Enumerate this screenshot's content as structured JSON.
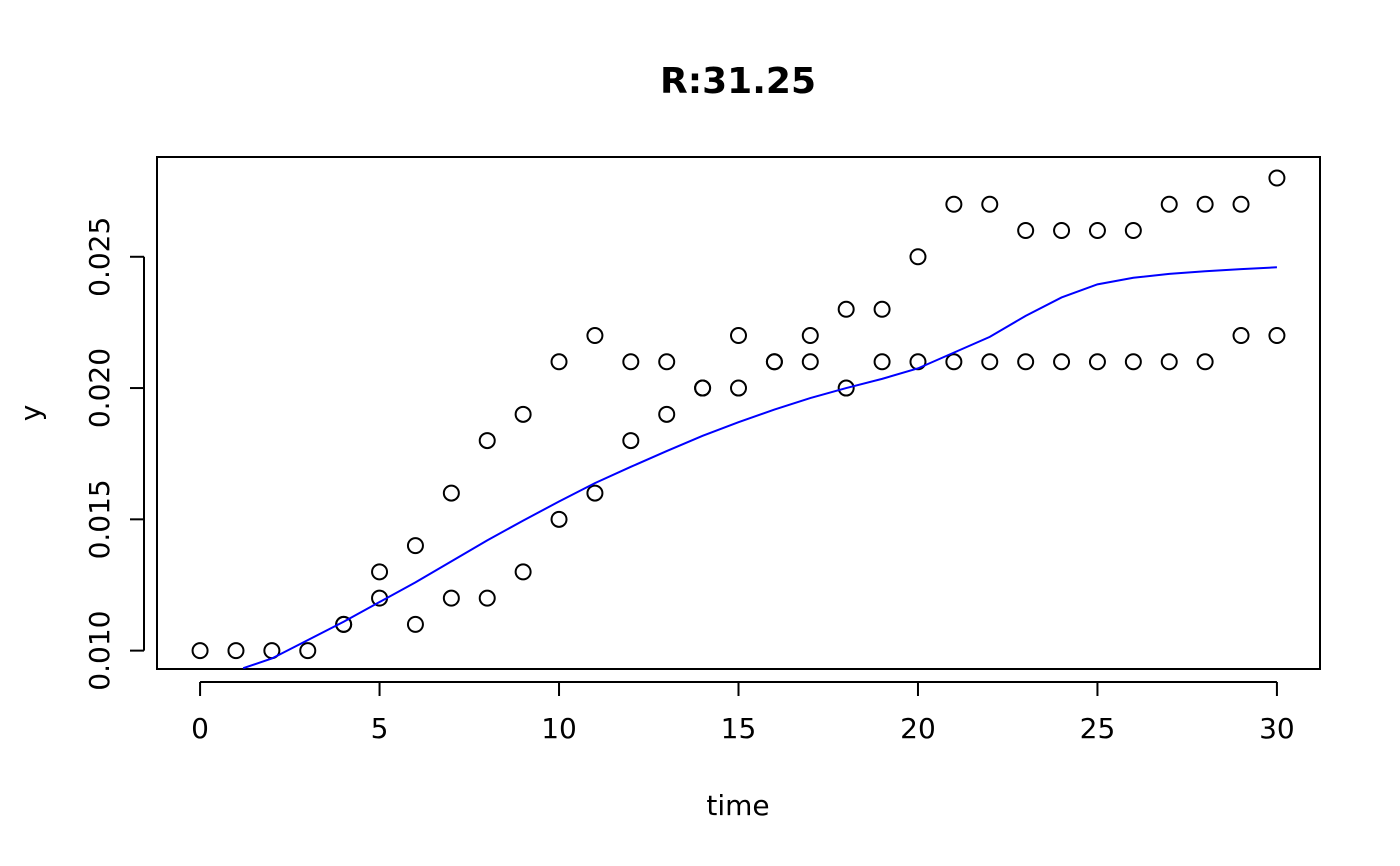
{
  "chart_data": {
    "type": "scatter",
    "title": "R:31.25",
    "xlabel": "time",
    "ylabel": "y",
    "xlim": [
      -1.2,
      31.2
    ],
    "ylim": [
      0.0093,
      0.0288
    ],
    "xticks": [
      0,
      5,
      10,
      15,
      20,
      25,
      30
    ],
    "yticks": [
      0.01,
      0.015,
      0.02,
      0.025
    ],
    "xtick_labels": [
      "0",
      "5",
      "10",
      "15",
      "20",
      "25",
      "30"
    ],
    "ytick_labels": [
      "0.010",
      "0.015",
      "0.020",
      "0.025"
    ],
    "grid": false,
    "legend": "none",
    "points": {
      "x": [
        0,
        1,
        2,
        3,
        4,
        4,
        5,
        5,
        6,
        6,
        7,
        7,
        8,
        8,
        9,
        9,
        10,
        10,
        11,
        11,
        12,
        12,
        13,
        13,
        14,
        14,
        15,
        15,
        16,
        16,
        17,
        17,
        18,
        18,
        19,
        19,
        20,
        20,
        21,
        21,
        22,
        22,
        23,
        23,
        24,
        24,
        25,
        25,
        26,
        26,
        27,
        27,
        28,
        28,
        29,
        29,
        30,
        30
      ],
      "y": [
        0.01,
        0.01,
        0.01,
        0.01,
        0.011,
        0.011,
        0.013,
        0.012,
        0.014,
        0.011,
        0.016,
        0.012,
        0.018,
        0.012,
        0.019,
        0.013,
        0.021,
        0.015,
        0.022,
        0.016,
        0.021,
        0.018,
        0.021,
        0.019,
        0.02,
        0.02,
        0.022,
        0.02,
        0.021,
        0.021,
        0.022,
        0.021,
        0.023,
        0.02,
        0.023,
        0.021,
        0.025,
        0.021,
        0.027,
        0.021,
        0.027,
        0.021,
        0.026,
        0.021,
        0.026,
        0.021,
        0.026,
        0.021,
        0.026,
        0.021,
        0.027,
        0.021,
        0.027,
        0.021,
        0.027,
        0.022,
        0.028,
        0.022
      ]
    },
    "fit_curve": {
      "color": "#0000ff",
      "x": [
        1.2,
        2,
        3,
        4,
        5,
        6,
        7,
        8,
        9,
        10,
        11,
        12,
        13,
        14,
        15,
        16,
        17,
        18,
        19,
        20,
        21,
        22,
        23,
        24,
        25,
        26,
        27,
        28,
        29,
        30
      ],
      "y": [
        0.00933,
        0.0097,
        0.0104,
        0.0111,
        0.01185,
        0.0126,
        0.0134,
        0.0142,
        0.01495,
        0.01568,
        0.01638,
        0.017,
        0.0176,
        0.01818,
        0.0187,
        0.01918,
        0.01962,
        0.02,
        0.02035,
        0.02075,
        0.02135,
        0.02195,
        0.02275,
        0.02345,
        0.02395,
        0.0242,
        0.02435,
        0.02445,
        0.02453,
        0.0246
      ]
    }
  }
}
